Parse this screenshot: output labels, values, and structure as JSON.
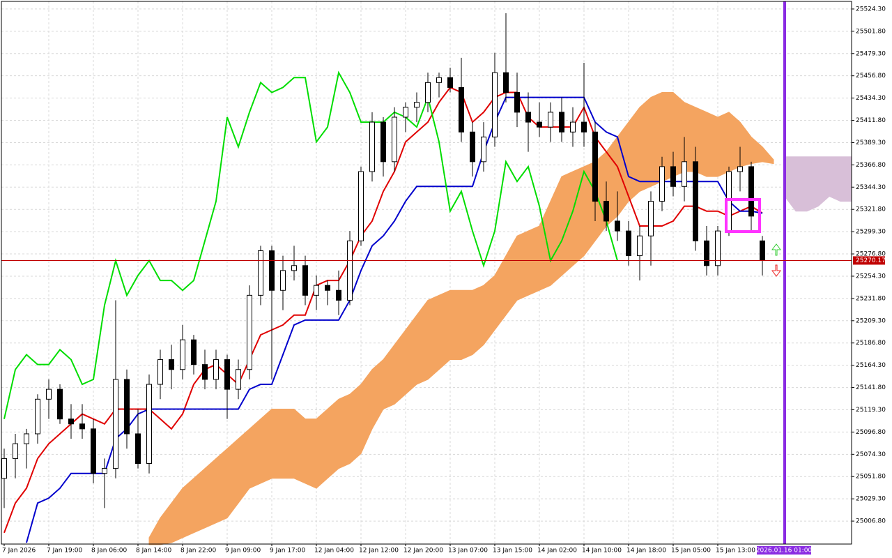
{
  "chart_data": {
    "type": "candlestick",
    "categories": [
      "7 Jan 2026",
      null,
      null,
      null,
      "7 Jan 19:00",
      null,
      null,
      null,
      "8 Jan 06:00",
      null,
      null,
      null,
      "8 Jan 14:00",
      null,
      null,
      null,
      "8 Jan 22:00",
      null,
      null,
      null,
      "9 Jan 09:00",
      null,
      null,
      null,
      "9 Jan 17:00",
      null,
      null,
      null,
      "12 Jan 04:00",
      null,
      null,
      null,
      "12 Jan 12:00",
      null,
      null,
      null,
      "12 Jan 20:00",
      null,
      null,
      null,
      "13 Jan 07:00",
      null,
      null,
      null,
      "13 Jan 15:00",
      null,
      null,
      null,
      "14 Jan 02:00",
      null,
      null,
      null,
      "14 Jan 10:00",
      null,
      null,
      null,
      "14 Jan 18:00",
      null,
      null,
      null,
      "15 Jan 05:00",
      null,
      null,
      null,
      "15 Jan 13:00",
      null,
      null,
      null,
      null,
      null,
      "2026.01.16 01:00",
      null,
      null,
      null,
      null,
      null,
      null
    ],
    "open": [
      25050,
      25070,
      25085,
      25095,
      25130,
      25140,
      25110,
      25105,
      25100,
      25055,
      25060,
      25150,
      25095,
      25065,
      25145,
      25170,
      25160,
      25190,
      25165,
      25150,
      25170,
      25140,
      25160,
      25235,
      25280,
      25240,
      25260,
      25265,
      25235,
      25245,
      25240,
      25230,
      25290,
      25360,
      25410,
      25370,
      25415,
      25425,
      25430,
      25450,
      25455,
      25445,
      25400,
      25370,
      25395,
      25460,
      25440,
      25420,
      25410,
      25405,
      25420,
      25400,
      25410,
      25400,
      25330,
      25310,
      25300,
      25275,
      25295,
      25330,
      25365,
      25345,
      25370,
      25290,
      25265,
      25300,
      25360,
      25365,
      25290,
      null,
      null,
      null,
      null,
      null,
      null,
      null,
      null
    ],
    "high": [
      25080,
      25095,
      25100,
      25135,
      25150,
      25145,
      25125,
      25125,
      25110,
      25070,
      25230,
      25160,
      25120,
      25155,
      25180,
      25185,
      25205,
      25195,
      25180,
      25180,
      25175,
      25170,
      25245,
      25285,
      25285,
      25275,
      25285,
      25275,
      25255,
      25250,
      25260,
      25300,
      25365,
      25420,
      25415,
      25425,
      25430,
      25440,
      25460,
      25460,
      25465,
      25475,
      25410,
      25410,
      25480,
      25520,
      25460,
      25440,
      25430,
      25430,
      25435,
      25425,
      25470,
      25410,
      25350,
      25340,
      25310,
      25305,
      25340,
      25375,
      25380,
      25395,
      25385,
      25305,
      25305,
      25365,
      25385,
      25370,
      25295,
      null,
      null,
      null,
      null,
      null,
      null,
      null,
      null
    ],
    "low": [
      25020,
      25050,
      25060,
      25085,
      25110,
      25105,
      25090,
      25090,
      25045,
      25020,
      25050,
      25080,
      25060,
      25055,
      25130,
      25140,
      25150,
      25155,
      25140,
      25140,
      25110,
      25130,
      25150,
      25225,
      25150,
      25220,
      25250,
      25225,
      25220,
      25225,
      25215,
      25225,
      25285,
      25350,
      25355,
      25360,
      25400,
      25410,
      25420,
      25435,
      25440,
      25390,
      25355,
      25360,
      25385,
      25430,
      25405,
      25380,
      25395,
      25390,
      25390,
      25385,
      25385,
      25310,
      25300,
      25290,
      25265,
      25250,
      25265,
      25320,
      25335,
      25330,
      25280,
      25255,
      25255,
      25295,
      25340,
      25300,
      25255,
      null,
      null,
      null,
      null,
      null,
      null,
      null,
      null
    ],
    "close": [
      25070,
      25085,
      25095,
      25130,
      25140,
      25110,
      25105,
      25100,
      25055,
      25060,
      25150,
      25095,
      25065,
      25145,
      25170,
      25160,
      25190,
      25165,
      25150,
      25170,
      25140,
      25160,
      25235,
      25280,
      25240,
      25260,
      25265,
      25235,
      25245,
      25240,
      25230,
      25290,
      25360,
      25410,
      25370,
      25415,
      25425,
      25430,
      25450,
      25455,
      25445,
      25400,
      25370,
      25395,
      25460,
      25440,
      25420,
      25410,
      25405,
      25420,
      25400,
      25410,
      25400,
      25330,
      25310,
      25300,
      25275,
      25295,
      25330,
      25365,
      25345,
      25370,
      25290,
      25265,
      25300,
      25360,
      25365,
      25315,
      25270.17,
      null,
      null,
      null,
      null,
      null,
      null,
      null,
      null
    ],
    "bull_color": "#ffffff",
    "bear_color": "#000000",
    "lines": [
      {
        "color": "#e00000",
        "values": [
          24995,
          25025,
          25040,
          25070,
          25085,
          25095,
          25105,
          25115,
          25110,
          25105,
          25120,
          25120,
          25120,
          25120,
          25110,
          25100,
          25115,
          25145,
          25160,
          25165,
          25155,
          25145,
          25170,
          25195,
          25200,
          25205,
          25215,
          25215,
          25245,
          25250,
          25250,
          25270,
          25295,
          25310,
          25340,
          25360,
          25390,
          25400,
          25410,
          25430,
          25445,
          25440,
          25410,
          25420,
          25435,
          25440,
          25440,
          25415,
          25405,
          25405,
          25405,
          25405,
          25425,
          25395,
          25380,
          25365,
          25335,
          25305,
          25305,
          25305,
          25310,
          25325,
          25325,
          25320,
          25320,
          25315,
          25320,
          25325,
          25318,
          null,
          null,
          null,
          null,
          null,
          null,
          null,
          null
        ]
      },
      {
        "color": "#0000cc",
        "values": [
          null,
          null,
          24985,
          25025,
          25030,
          25040,
          25055,
          25055,
          25055,
          25055,
          25090,
          25100,
          25115,
          25120,
          25120,
          25120,
          25120,
          25120,
          25120,
          25120,
          25120,
          25120,
          25140,
          25145,
          25145,
          25175,
          25205,
          25210,
          25210,
          25210,
          25210,
          25230,
          25260,
          25285,
          25295,
          25310,
          25330,
          25345,
          25345,
          25345,
          25345,
          25345,
          25345,
          25380,
          25410,
          25435,
          25435,
          25435,
          25435,
          25435,
          25435,
          25435,
          25435,
          25410,
          25400,
          25395,
          25355,
          25350,
          25350,
          25350,
          25350,
          25350,
          25350,
          25350,
          25350,
          25330,
          25320,
          25320,
          25318,
          null,
          null,
          null,
          null,
          null,
          null,
          null,
          null
        ]
      },
      {
        "color": "#00dd00",
        "values": [
          25110,
          25160,
          25175,
          25165,
          25165,
          25180,
          25170,
          25145,
          25150,
          25225,
          25270,
          25235,
          25255,
          25270,
          25250,
          25250,
          25240,
          25250,
          25290,
          25330,
          25415,
          25385,
          25420,
          25450,
          25440,
          25445,
          25455,
          25455,
          25390,
          25405,
          25460,
          25440,
          25410,
          25410,
          25410,
          25420,
          25415,
          25405,
          25435,
          25390,
          25320,
          25340,
          25300,
          25265,
          25300,
          25370,
          25350,
          25365,
          25325,
          25270,
          25290,
          25320,
          25360,
          25340,
          25310,
          25270,
          null,
          null,
          null,
          null,
          null,
          null,
          null,
          null,
          null,
          null,
          null,
          null,
          null,
          null,
          null,
          null,
          null,
          null,
          null,
          null,
          null
        ]
      }
    ],
    "clouds": [
      {
        "color": "#f4a460",
        "upper": [
          null,
          null,
          null,
          null,
          null,
          null,
          null,
          null,
          null,
          null,
          null,
          null,
          null,
          24990,
          25010,
          25025,
          25040,
          25050,
          25060,
          25070,
          25080,
          25090,
          25100,
          25110,
          25120,
          25120,
          25120,
          25110,
          25110,
          25120,
          25130,
          25135,
          25145,
          25160,
          25170,
          25185,
          25200,
          25215,
          25230,
          25235,
          25240,
          25240,
          25240,
          25245,
          25255,
          25275,
          25295,
          25300,
          25305,
          25330,
          25355,
          25360,
          25365,
          25370,
          25380,
          25395,
          25410,
          25425,
          25435,
          25440,
          25440,
          25430,
          25425,
          25420,
          25415,
          25420,
          25410,
          25395,
          25385,
          25372,
          null,
          null,
          null,
          null,
          null,
          null,
          null
        ],
        "lower": [
          null,
          null,
          null,
          null,
          null,
          null,
          null,
          null,
          null,
          null,
          null,
          null,
          null,
          24983,
          24983,
          24985,
          24990,
          24995,
          25000,
          25005,
          25010,
          25025,
          25040,
          25045,
          25050,
          25050,
          25050,
          25045,
          25040,
          25050,
          25060,
          25065,
          25075,
          25100,
          25120,
          25125,
          25135,
          25145,
          25150,
          25160,
          25170,
          25170,
          25175,
          25185,
          25200,
          25215,
          25230,
          25235,
          25240,
          25245,
          25255,
          25265,
          25275,
          25290,
          25305,
          25315,
          25330,
          25340,
          25345,
          25350,
          25355,
          25360,
          25360,
          25355,
          25355,
          25360,
          25365,
          25368,
          25370,
          25368,
          null,
          null,
          null,
          null,
          null,
          null,
          null
        ]
      },
      {
        "color": "#d8bfd8",
        "upper": [
          null,
          null,
          null,
          null,
          null,
          null,
          null,
          null,
          null,
          null,
          null,
          null,
          null,
          null,
          null,
          null,
          null,
          null,
          null,
          null,
          null,
          null,
          null,
          null,
          null,
          null,
          null,
          null,
          null,
          null,
          null,
          null,
          null,
          null,
          null,
          null,
          null,
          null,
          null,
          null,
          null,
          null,
          null,
          null,
          null,
          null,
          null,
          null,
          null,
          null,
          null,
          null,
          null,
          null,
          null,
          null,
          null,
          null,
          null,
          null,
          null,
          null,
          null,
          null,
          null,
          null,
          null,
          null,
          null,
          null,
          25375,
          25375,
          25375,
          25375,
          25375,
          25375,
          25375
        ],
        "lower": [
          null,
          null,
          null,
          null,
          null,
          null,
          null,
          null,
          null,
          null,
          null,
          null,
          null,
          null,
          null,
          null,
          null,
          null,
          null,
          null,
          null,
          null,
          null,
          null,
          null,
          null,
          null,
          null,
          null,
          null,
          null,
          null,
          null,
          null,
          null,
          null,
          null,
          null,
          null,
          null,
          null,
          null,
          null,
          null,
          null,
          null,
          null,
          null,
          null,
          null,
          null,
          null,
          null,
          null,
          null,
          null,
          null,
          null,
          null,
          null,
          null,
          null,
          null,
          null,
          null,
          null,
          null,
          null,
          null,
          null,
          25335,
          25320,
          25320,
          25325,
          25335,
          25330,
          25330
        ]
      }
    ],
    "current_price": 25270.17,
    "current_price_color": "#c00000",
    "marker_color": "#8a2be2",
    "ylim": [
      24983.6,
      25532.0
    ],
    "yticks": [
      {
        "value": 25524.3,
        "label": "25524.30"
      },
      {
        "value": 25501.8,
        "label": "25501.80"
      },
      {
        "value": 25479.3,
        "label": "25479.30"
      },
      {
        "value": 25456.8,
        "label": "25456.80"
      },
      {
        "value": 25434.3,
        "label": "25434.30"
      },
      {
        "value": 25411.8,
        "label": "25411.80"
      },
      {
        "value": 25389.3,
        "label": "25389.30"
      },
      {
        "value": 25366.8,
        "label": "25366.80"
      },
      {
        "value": 25344.3,
        "label": "25344.30"
      },
      {
        "value": 25321.8,
        "label": "25321.80"
      },
      {
        "value": 25299.3,
        "label": "25299.30"
      },
      {
        "value": 25276.8,
        "label": "25276.80"
      },
      {
        "value": 25254.3,
        "label": "25254.30"
      },
      {
        "value": 25231.8,
        "label": "25231.80"
      },
      {
        "value": 25209.3,
        "label": "25209.30"
      },
      {
        "value": 25186.8,
        "label": "25186.80"
      },
      {
        "value": 25164.3,
        "label": "25164.30"
      },
      {
        "value": 25141.8,
        "label": "25141.80"
      },
      {
        "value": 25119.3,
        "label": "25119.30"
      },
      {
        "value": 25096.8,
        "label": "25096.80"
      },
      {
        "value": 25074.3,
        "label": "25074.30"
      },
      {
        "value": 25051.8,
        "label": "25051.80"
      },
      {
        "value": 25029.3,
        "label": "25029.30"
      },
      {
        "value": 25006.8,
        "label": "25006.80"
      }
    ],
    "grid": true
  }
}
